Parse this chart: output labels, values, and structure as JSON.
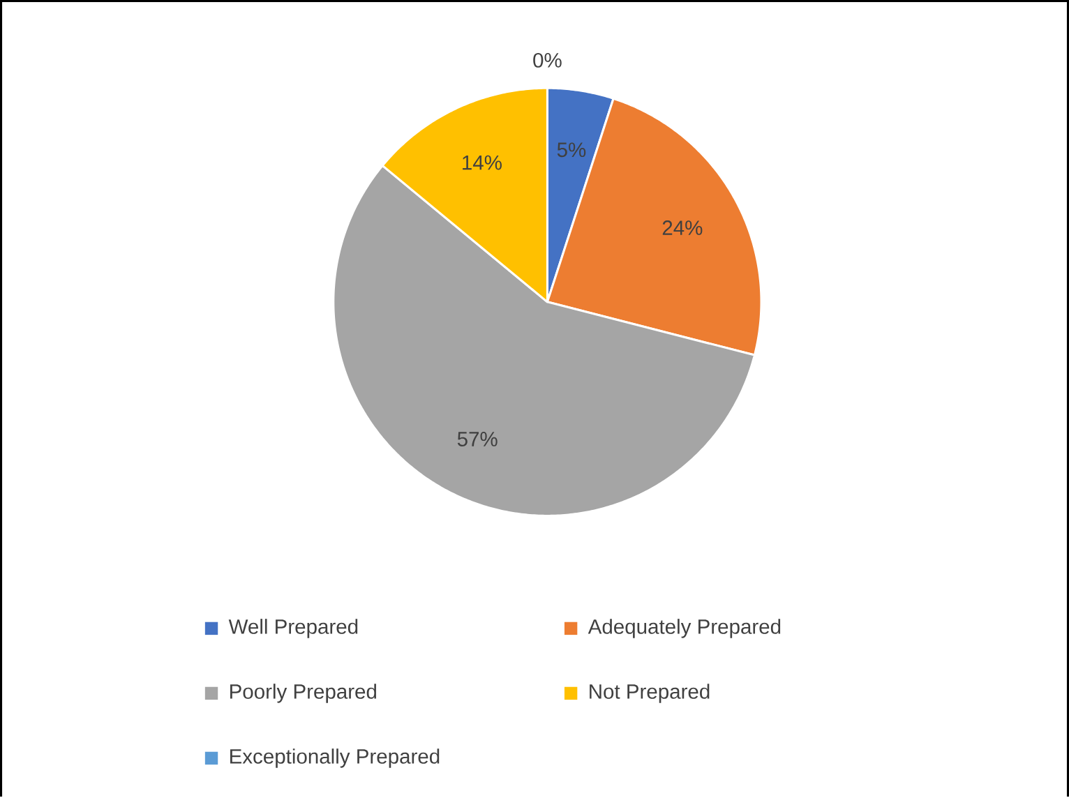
{
  "chart_data": {
    "type": "pie",
    "categories": [
      "Well Prepared",
      "Adequately Prepared",
      "Poorly Prepared",
      "Not Prepared",
      "Exceptionally Prepared"
    ],
    "values": [
      5,
      24,
      57,
      14,
      0
    ],
    "colors": [
      "#4472c4",
      "#ed7d31",
      "#a5a5a5",
      "#ffc000",
      "#5b9bd5"
    ],
    "value_labels": [
      "5%",
      "24%",
      "57%",
      "14%",
      "0%"
    ],
    "legend": "bottom"
  }
}
